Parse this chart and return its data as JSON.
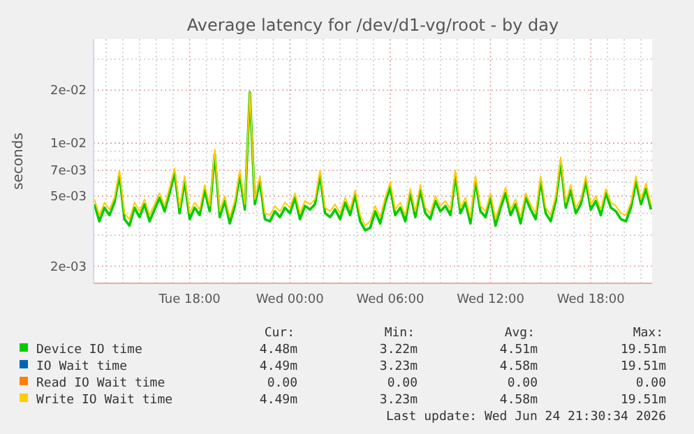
{
  "chart_data": {
    "type": "line",
    "title": "Average latency for /dev/d1-vg/root - by day",
    "ylabel": "seconds",
    "log": "y",
    "grid": true,
    "legend": "bottom",
    "line_style": "solid",
    "marker": "none",
    "xlim": [
      "2026-06-23T12:15",
      "2026-06-24T21:40"
    ],
    "ylim": [
      0.0016,
      0.039
    ],
    "xticks": [
      {
        "value": "2026-06-23T13:00",
        "label": null
      },
      {
        "value": "2026-06-23T14:00",
        "label": null
      },
      {
        "value": "2026-06-23T15:00",
        "label": null
      },
      {
        "value": "2026-06-23T16:00",
        "label": null
      },
      {
        "value": "2026-06-23T17:00",
        "label": null
      },
      {
        "value": "2026-06-23T18:00",
        "label": "Tue 18:00"
      },
      {
        "value": "2026-06-23T19:00",
        "label": null
      },
      {
        "value": "2026-06-23T20:00",
        "label": null
      },
      {
        "value": "2026-06-23T21:00",
        "label": null
      },
      {
        "value": "2026-06-23T22:00",
        "label": null
      },
      {
        "value": "2026-06-23T23:00",
        "label": null
      },
      {
        "value": "2026-06-24T00:00",
        "label": "Wed 00:00"
      },
      {
        "value": "2026-06-24T01:00",
        "label": null
      },
      {
        "value": "2026-06-24T02:00",
        "label": null
      },
      {
        "value": "2026-06-24T03:00",
        "label": null
      },
      {
        "value": "2026-06-24T04:00",
        "label": null
      },
      {
        "value": "2026-06-24T05:00",
        "label": null
      },
      {
        "value": "2026-06-24T06:00",
        "label": "Wed 06:00"
      },
      {
        "value": "2026-06-24T07:00",
        "label": null
      },
      {
        "value": "2026-06-24T08:00",
        "label": null
      },
      {
        "value": "2026-06-24T09:00",
        "label": null
      },
      {
        "value": "2026-06-24T10:00",
        "label": null
      },
      {
        "value": "2026-06-24T11:00",
        "label": null
      },
      {
        "value": "2026-06-24T12:00",
        "label": "Wed 12:00"
      },
      {
        "value": "2026-06-24T13:00",
        "label": null
      },
      {
        "value": "2026-06-24T14:00",
        "label": null
      },
      {
        "value": "2026-06-24T15:00",
        "label": null
      },
      {
        "value": "2026-06-24T16:00",
        "label": null
      },
      {
        "value": "2026-06-24T17:00",
        "label": null
      },
      {
        "value": "2026-06-24T18:00",
        "label": "Wed 18:00"
      },
      {
        "value": "2026-06-24T19:00",
        "label": null
      },
      {
        "value": "2026-06-24T20:00",
        "label": null
      },
      {
        "value": "2026-06-24T21:00",
        "label": null
      }
    ],
    "yticks": [
      {
        "value": 0.002,
        "label": "2e-03"
      },
      {
        "value": 0.003,
        "label": null
      },
      {
        "value": 0.004,
        "label": null
      },
      {
        "value": 0.005,
        "label": "5e-03"
      },
      {
        "value": 0.006,
        "label": null
      },
      {
        "value": 0.007,
        "label": "7e-03"
      },
      {
        "value": 0.008,
        "label": null
      },
      {
        "value": 0.009,
        "label": null
      },
      {
        "value": 0.01,
        "label": "1e-02"
      },
      {
        "value": 0.02,
        "label": "2e-02"
      },
      {
        "value": 0.03,
        "label": null
      }
    ],
    "x": [
      "2026-06-23T12:18",
      "2026-06-23T12:36",
      "2026-06-23T12:54",
      "2026-06-23T13:12",
      "2026-06-23T13:30",
      "2026-06-23T13:48",
      "2026-06-23T14:06",
      "2026-06-23T14:24",
      "2026-06-23T14:42",
      "2026-06-23T15:00",
      "2026-06-23T15:18",
      "2026-06-23T15:36",
      "2026-06-23T15:54",
      "2026-06-23T16:12",
      "2026-06-23T16:30",
      "2026-06-23T16:48",
      "2026-06-23T17:06",
      "2026-06-23T17:24",
      "2026-06-23T17:42",
      "2026-06-23T18:00",
      "2026-06-23T18:18",
      "2026-06-23T18:36",
      "2026-06-23T18:54",
      "2026-06-23T19:12",
      "2026-06-23T19:30",
      "2026-06-23T19:48",
      "2026-06-23T20:06",
      "2026-06-23T20:24",
      "2026-06-23T20:42",
      "2026-06-23T21:00",
      "2026-06-23T21:18",
      "2026-06-23T21:36",
      "2026-06-23T21:54",
      "2026-06-23T22:12",
      "2026-06-23T22:30",
      "2026-06-23T22:48",
      "2026-06-23T23:06",
      "2026-06-23T23:24",
      "2026-06-23T23:42",
      "2026-06-24T00:00",
      "2026-06-24T00:18",
      "2026-06-24T00:36",
      "2026-06-24T00:54",
      "2026-06-24T01:12",
      "2026-06-24T01:30",
      "2026-06-24T01:48",
      "2026-06-24T02:06",
      "2026-06-24T02:24",
      "2026-06-24T02:42",
      "2026-06-24T03:00",
      "2026-06-24T03:18",
      "2026-06-24T03:36",
      "2026-06-24T03:54",
      "2026-06-24T04:12",
      "2026-06-24T04:30",
      "2026-06-24T04:48",
      "2026-06-24T05:06",
      "2026-06-24T05:24",
      "2026-06-24T05:42",
      "2026-06-24T06:00",
      "2026-06-24T06:18",
      "2026-06-24T06:36",
      "2026-06-24T06:54",
      "2026-06-24T07:12",
      "2026-06-24T07:30",
      "2026-06-24T07:48",
      "2026-06-24T08:06",
      "2026-06-24T08:24",
      "2026-06-24T08:42",
      "2026-06-24T09:00",
      "2026-06-24T09:18",
      "2026-06-24T09:36",
      "2026-06-24T09:54",
      "2026-06-24T10:12",
      "2026-06-24T10:30",
      "2026-06-24T10:48",
      "2026-06-24T11:06",
      "2026-06-24T11:24",
      "2026-06-24T11:42",
      "2026-06-24T12:00",
      "2026-06-24T12:18",
      "2026-06-24T12:36",
      "2026-06-24T12:54",
      "2026-06-24T13:12",
      "2026-06-24T13:30",
      "2026-06-24T13:48",
      "2026-06-24T14:06",
      "2026-06-24T14:24",
      "2026-06-24T14:42",
      "2026-06-24T15:00",
      "2026-06-24T15:18",
      "2026-06-24T15:36",
      "2026-06-24T15:54",
      "2026-06-24T16:12",
      "2026-06-24T16:30",
      "2026-06-24T16:48",
      "2026-06-24T17:06",
      "2026-06-24T17:24",
      "2026-06-24T17:42",
      "2026-06-24T18:00",
      "2026-06-24T18:18",
      "2026-06-24T18:36",
      "2026-06-24T18:54",
      "2026-06-24T19:12",
      "2026-06-24T19:30",
      "2026-06-24T19:48",
      "2026-06-24T20:06",
      "2026-06-24T20:24",
      "2026-06-24T20:42",
      "2026-06-24T21:00",
      "2026-06-24T21:18",
      "2026-06-24T21:36"
    ],
    "series": [
      {
        "name": "Device IO time",
        "color": "#00cc00",
        "values": [
          0.0045,
          0.0036,
          0.0043,
          0.0039,
          0.0046,
          0.0066,
          0.0037,
          0.0034,
          0.0043,
          0.0038,
          0.0045,
          0.0036,
          0.0042,
          0.0049,
          0.0041,
          0.0052,
          0.0068,
          0.004,
          0.0061,
          0.0037,
          0.0043,
          0.0039,
          0.0054,
          0.0041,
          0.0087,
          0.0038,
          0.0047,
          0.0035,
          0.0044,
          0.0066,
          0.0042,
          0.0195,
          0.0045,
          0.0061,
          0.0037,
          0.0036,
          0.0041,
          0.0038,
          0.0043,
          0.004,
          0.0049,
          0.0037,
          0.0044,
          0.0042,
          0.0045,
          0.0066,
          0.004,
          0.0038,
          0.0042,
          0.0037,
          0.0046,
          0.0039,
          0.0051,
          0.0036,
          0.0032,
          0.0033,
          0.0041,
          0.0035,
          0.0046,
          0.0056,
          0.0039,
          0.0043,
          0.0036,
          0.0052,
          0.0038,
          0.0054,
          0.004,
          0.0037,
          0.0047,
          0.0041,
          0.0044,
          0.0039,
          0.0066,
          0.004,
          0.0046,
          0.0035,
          0.0061,
          0.0041,
          0.0038,
          0.0049,
          0.0034,
          0.0043,
          0.0052,
          0.0039,
          0.0045,
          0.0035,
          0.0049,
          0.0042,
          0.0037,
          0.0061,
          0.004,
          0.0036,
          0.0047,
          0.0078,
          0.0043,
          0.0054,
          0.004,
          0.0045,
          0.0061,
          0.0042,
          0.0047,
          0.0039,
          0.0052,
          0.0043,
          0.0041,
          0.0037,
          0.0036,
          0.0043,
          0.0061,
          0.0045,
          0.0055,
          0.0042
        ]
      },
      {
        "name": "IO Wait time",
        "color": "#0066b3",
        "values": [
          null,
          null,
          null,
          null,
          null,
          null,
          null,
          null,
          null,
          null,
          null,
          null,
          null,
          null,
          null,
          null,
          null,
          null,
          null,
          null,
          null,
          null,
          null,
          null,
          null,
          null,
          null,
          null,
          null,
          null,
          null,
          null,
          null,
          null,
          null,
          null,
          null,
          null,
          null,
          null,
          null,
          null,
          null,
          null,
          null,
          null,
          null,
          null,
          null,
          null,
          null,
          null,
          null,
          null,
          null,
          null,
          null,
          null,
          null,
          null,
          null,
          null,
          null,
          null,
          null,
          null,
          null,
          null,
          null,
          null,
          null,
          null,
          null,
          null,
          null,
          null,
          null,
          null,
          null,
          null,
          null,
          null,
          null,
          null,
          null,
          null,
          null,
          null,
          null,
          null,
          null,
          null,
          null,
          null,
          null,
          null,
          null,
          null,
          null,
          null,
          null,
          null,
          null,
          null,
          null,
          null,
          null,
          null,
          null,
          null,
          null,
          null
        ]
      },
      {
        "name": "Read IO Wait time",
        "color": "#ff8000",
        "values": [
          null,
          null,
          null,
          null,
          null,
          null,
          null,
          null,
          null,
          null,
          null,
          null,
          null,
          null,
          null,
          null,
          null,
          null,
          null,
          null,
          null,
          null,
          null,
          null,
          null,
          null,
          null,
          null,
          null,
          null,
          null,
          null,
          null,
          null,
          null,
          null,
          null,
          null,
          null,
          null,
          null,
          null,
          null,
          null,
          null,
          null,
          null,
          null,
          null,
          null,
          null,
          null,
          null,
          null,
          null,
          null,
          null,
          null,
          null,
          null,
          null,
          null,
          null,
          null,
          null,
          null,
          null,
          null,
          null,
          null,
          null,
          null,
          null,
          null,
          null,
          null,
          null,
          null,
          null,
          null,
          null,
          null,
          null,
          null,
          null,
          null,
          null,
          null,
          null,
          null,
          null,
          null,
          null,
          null,
          null,
          null,
          null,
          null,
          null,
          null,
          null,
          null,
          null,
          null,
          null,
          null,
          null,
          null,
          null,
          null,
          null,
          null
        ]
      },
      {
        "name": "Write IO Wait time",
        "color": "#ffcc00",
        "values": [
          0.0048,
          0.0039,
          0.0046,
          0.0042,
          0.0049,
          0.007,
          0.004,
          0.0037,
          0.0046,
          0.0041,
          0.0048,
          0.0039,
          0.0045,
          0.0052,
          0.0044,
          0.0056,
          0.0072,
          0.0043,
          0.0065,
          0.004,
          0.0046,
          0.0042,
          0.0058,
          0.0044,
          0.0092,
          0.0041,
          0.005,
          0.0038,
          0.0047,
          0.007,
          0.0045,
          0.0195,
          0.0048,
          0.0065,
          0.004,
          0.0039,
          0.0044,
          0.0041,
          0.0046,
          0.0043,
          0.0052,
          0.004,
          0.0047,
          0.0045,
          0.0048,
          0.007,
          0.0043,
          0.0041,
          0.0045,
          0.004,
          0.0049,
          0.0042,
          0.0054,
          0.0039,
          0.0034,
          0.0036,
          0.0044,
          0.0038,
          0.0049,
          0.006,
          0.0042,
          0.0046,
          0.0039,
          0.0055,
          0.0041,
          0.0058,
          0.0043,
          0.004,
          0.005,
          0.0044,
          0.0047,
          0.0042,
          0.007,
          0.0043,
          0.0049,
          0.0038,
          0.0065,
          0.0044,
          0.0041,
          0.0052,
          0.0037,
          0.0046,
          0.0056,
          0.0042,
          0.0048,
          0.0038,
          0.0052,
          0.0045,
          0.004,
          0.0065,
          0.0043,
          0.0039,
          0.005,
          0.0083,
          0.0046,
          0.0058,
          0.0043,
          0.0048,
          0.0065,
          0.0045,
          0.005,
          0.0042,
          0.0055,
          0.0046,
          0.0044,
          0.004,
          0.0039,
          0.0046,
          0.0065,
          0.0048,
          0.0059,
          0.0045
        ]
      }
    ],
    "annotations": [
      "Cur:",
      "Min:",
      "Avg:",
      "Max:",
      "4.48m",
      "3.22m",
      "4.51m",
      "19.51m",
      "4.49m",
      "3.23m",
      "4.58m",
      "19.51m",
      "0.00",
      "0.00",
      "0.00",
      "0.00",
      "4.49m",
      "3.23m",
      "4.58m",
      "19.51m",
      "Last update: Wed Jun 24 21:30:34 2026"
    ]
  }
}
